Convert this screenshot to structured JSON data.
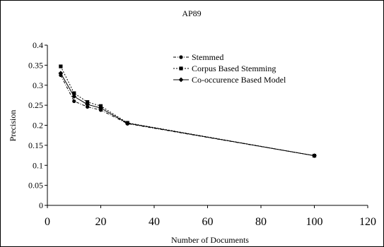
{
  "chart_data": {
    "type": "line",
    "title": "AP89",
    "xlabel": "Number of Documents",
    "ylabel": "Precision",
    "xlim": [
      0,
      120
    ],
    "ylim": [
      0,
      0.4
    ],
    "x_ticks": [
      0,
      20,
      40,
      60,
      80,
      100,
      120
    ],
    "y_ticks": [
      0,
      0.05,
      0.1,
      0.15,
      0.2,
      0.25,
      0.3,
      0.35,
      0.4
    ],
    "x_tick_labels": [
      "0",
      "20",
      "40",
      "60",
      "80",
      "100",
      "120"
    ],
    "y_tick_labels": [
      "0",
      "0.05",
      "0.1",
      "0.15",
      "0.2",
      "0.25",
      "0.3",
      "0.35",
      "0.4"
    ],
    "grid": false,
    "legend_position": "top-right",
    "x": [
      5,
      10,
      15,
      20,
      30,
      100
    ],
    "series": [
      {
        "name": "Stemmed",
        "marker": "circle",
        "line_style": "dash-dot",
        "values": [
          0.325,
          0.26,
          0.246,
          0.238,
          0.204,
          0.124
        ]
      },
      {
        "name": "Corpus Based Stemming",
        "marker": "square",
        "line_style": "dotted",
        "values": [
          0.347,
          0.28,
          0.258,
          0.248,
          0.206,
          0.124
        ]
      },
      {
        "name": "Co-occurence Based Model",
        "marker": "diamond",
        "line_style": "solid",
        "values": [
          0.33,
          0.272,
          0.252,
          0.243,
          0.205,
          0.124
        ]
      }
    ]
  }
}
